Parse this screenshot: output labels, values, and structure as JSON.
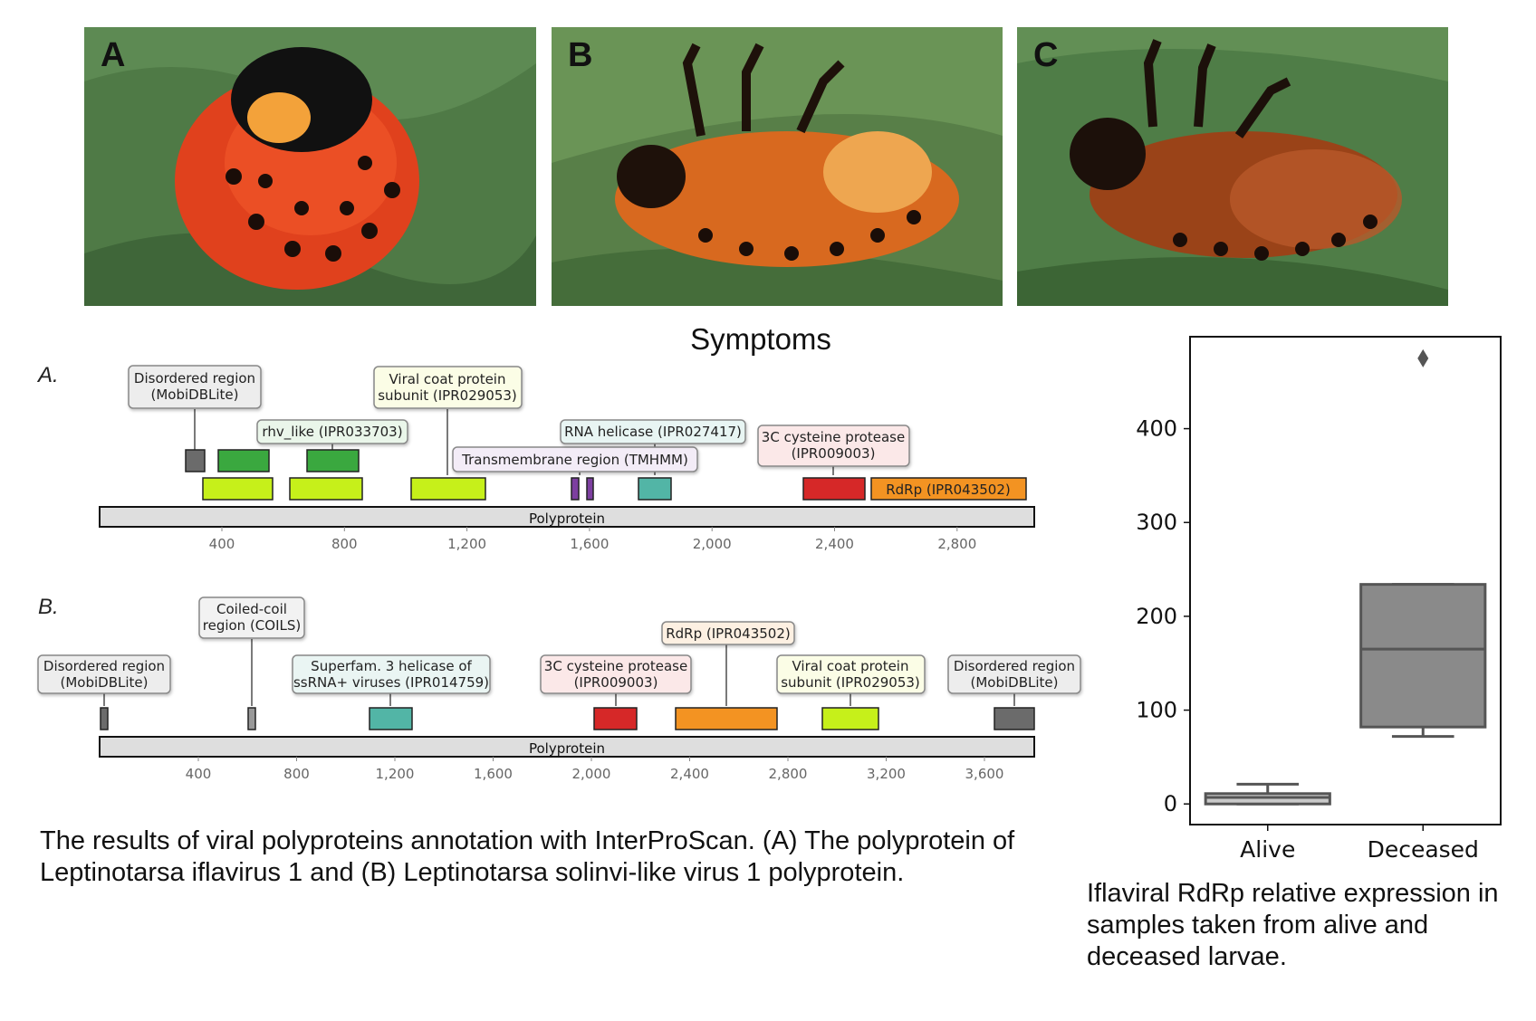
{
  "figure": {
    "photos": [
      {
        "letter": "A"
      },
      {
        "letter": "B"
      },
      {
        "letter": "C"
      }
    ],
    "photos_label": "Symptoms",
    "panel_a": {
      "label": "A.",
      "backbone": "Polyprotein",
      "axis_ticks": [
        "400",
        "800",
        "1,200",
        "1,600",
        "2,000",
        "2,400",
        "2,800"
      ],
      "callouts": [
        {
          "lines": [
            "Disordered region",
            "(MobiDBLite)"
          ],
          "color": "#6b6b6b"
        },
        {
          "lines": [
            "rhv_like (IPR033703)"
          ],
          "color": "#3aa83f"
        },
        {
          "lines": [
            "Viral coat protein",
            "subunit (IPR029053)"
          ],
          "color": "#c6f01a"
        },
        {
          "lines": [
            "Transmembrane region (TMHMM)"
          ],
          "color": "#7d3fa0"
        },
        {
          "lines": [
            "RNA helicase (IPR027417)"
          ],
          "color": "#52b5a6"
        },
        {
          "lines": [
            "3C cysteine protease",
            "(IPR009003)"
          ],
          "color": "#d62828"
        },
        {
          "lines": [
            "RdRp (IPR043502)"
          ],
          "color": "#f39322"
        }
      ]
    },
    "panel_b": {
      "label": "B.",
      "backbone": "Polyprotein",
      "axis_ticks": [
        "400",
        "800",
        "1,200",
        "1,600",
        "2,000",
        "2,400",
        "2,800",
        "3,200",
        "3,600"
      ],
      "callouts": [
        {
          "lines": [
            "Disordered region",
            "(MobiDBLite)"
          ],
          "color": "#6b6b6b"
        },
        {
          "lines": [
            "Coiled-coil",
            "region (COILS)"
          ],
          "color": "#999999"
        },
        {
          "lines": [
            "Superfam. 3 helicase of",
            "ssRNA+ viruses (IPR014759)"
          ],
          "color": "#52b5a6"
        },
        {
          "lines": [
            "3C cysteine protease",
            "(IPR009003)"
          ],
          "color": "#d62828"
        },
        {
          "lines": [
            "RdRp (IPR043502)"
          ],
          "color": "#f39322"
        },
        {
          "lines": [
            "Viral coat protein",
            "subunit (IPR029053)"
          ],
          "color": "#c6f01a"
        },
        {
          "lines": [
            "Disordered region",
            "(MobiDBLite)"
          ],
          "color": "#6b6b6b"
        }
      ]
    },
    "left_caption": "The results of viral polyproteins annotation with InterProScan. (A) The polyprotein of Leptinotarsa iflavirus 1  and (B) Leptinotarsa solinvi-like virus 1 polyprotein.",
    "right_caption": "Iflaviral RdRp relative expression in samples taken from alive and deceased larvae."
  },
  "chart_data": {
    "type": "box",
    "categories": [
      "Alive",
      "Deceased"
    ],
    "ylim": [
      -22,
      498
    ],
    "yticks": [
      0,
      100,
      200,
      300,
      400
    ],
    "boxes": [
      {
        "name": "Alive",
        "whisker_low": 0,
        "q1": 0,
        "median": 7,
        "q3": 11,
        "whisker_high": 21,
        "outliers": []
      },
      {
        "name": "Deceased",
        "whisker_low": 72,
        "q1": 82,
        "median": 165,
        "q3": 234,
        "whisker_high": 234,
        "outliers": [
          475
        ]
      }
    ],
    "grid": false,
    "colors": {
      "alive": "#c9c9c9",
      "deceased": "#8a8a8a"
    }
  }
}
